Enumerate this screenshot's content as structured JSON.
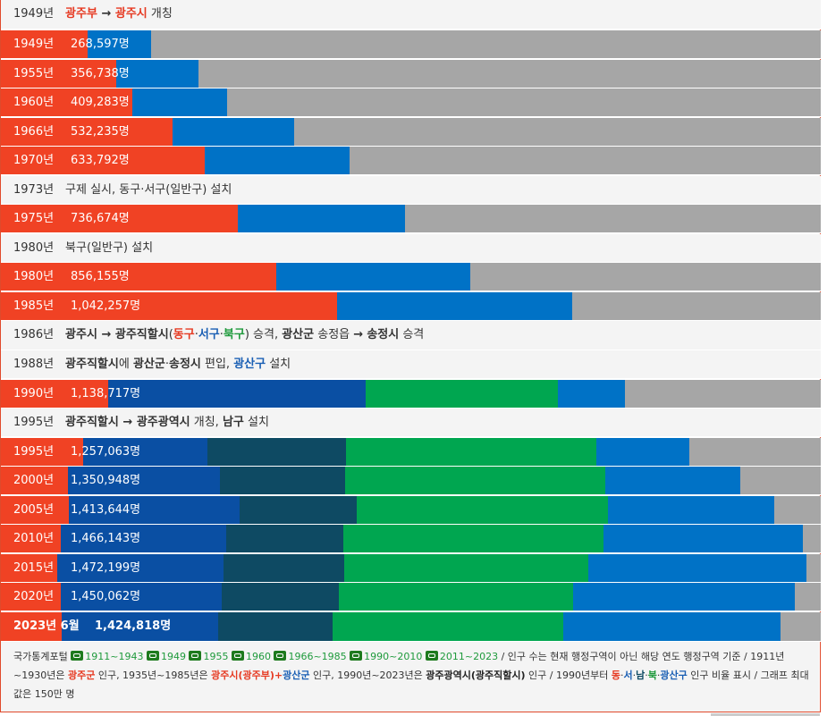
{
  "colors": {
    "bg": "#a6a6a6",
    "total_bar": "#f04224",
    "district_gwangsan": "#0072c6",
    "district_buk": "#0a4fa3",
    "district_nam": "#0e4a63",
    "district_dong": "#00a650",
    "district_seo_2": "#0a4fa3",
    "event_bg": "#f4f4f4"
  },
  "chart_data": {
    "type": "bar",
    "orientation": "horizontal",
    "max_value": 1500000,
    "series_note": "Each row shows total population as a red bar overlaid on stacked district segments",
    "rows": [
      {
        "kind": "event",
        "year": "1949년",
        "text_parts": [
          {
            "t": "광주부",
            "c": "red"
          },
          {
            "t": " → ",
            "c": "bold"
          },
          {
            "t": "광주시",
            "c": "red"
          },
          {
            "t": " 개칭",
            "c": ""
          }
        ]
      },
      {
        "kind": "bar",
        "year": "1949년",
        "label": "268,597명",
        "value": 268597,
        "segments": [
          {
            "color": "#0072c6",
            "value": 0
          }
        ]
      },
      {
        "kind": "bar",
        "year": "1955년",
        "label": "356,738명",
        "value": 356738,
        "segments": []
      },
      {
        "kind": "bar",
        "year": "1960년",
        "label": "409,283명",
        "value": 409283,
        "segments": []
      },
      {
        "kind": "bar",
        "year": "1966년",
        "label": "532,235명",
        "value": 532235,
        "segments": []
      },
      {
        "kind": "bar",
        "year": "1970년",
        "label": "633,792명",
        "value": 633792,
        "segments": []
      },
      {
        "kind": "event",
        "year": "1973년",
        "text_parts": [
          {
            "t": "구제 실시, 동구·서구(일반구) 설치",
            "c": ""
          }
        ]
      },
      {
        "kind": "bar",
        "year": "1975년",
        "label": "736,674명",
        "value": 736674,
        "segments": []
      },
      {
        "kind": "event",
        "year": "1980년",
        "text_parts": [
          {
            "t": "북구(일반구) 설치",
            "c": ""
          }
        ]
      },
      {
        "kind": "bar",
        "year": "1980년",
        "label": "856,155명",
        "value": 856155,
        "segments": []
      },
      {
        "kind": "bar",
        "year": "1985년",
        "label": "1,042,257명",
        "value": 1042257,
        "segments": []
      },
      {
        "kind": "event",
        "year": "1986년",
        "text_parts": [
          {
            "t": "광주시",
            "c": "bold"
          },
          {
            "t": " → ",
            "c": "bold"
          },
          {
            "t": "광주직할시",
            "c": "bold"
          },
          {
            "t": "(",
            "c": ""
          },
          {
            "t": "동구",
            "c": "red"
          },
          {
            "t": "·",
            "c": ""
          },
          {
            "t": "서구",
            "c": "blu"
          },
          {
            "t": "·",
            "c": ""
          },
          {
            "t": "북구",
            "c": "grn"
          },
          {
            "t": ") 승격, ",
            "c": ""
          },
          {
            "t": "광산군",
            "c": "bold"
          },
          {
            "t": " 송정읍 ",
            "c": ""
          },
          {
            "t": "→",
            "c": "bold"
          },
          {
            "t": " ",
            "c": ""
          },
          {
            "t": "송정시",
            "c": "bold"
          },
          {
            "t": " 승격",
            "c": ""
          }
        ]
      },
      {
        "kind": "event",
        "year": "1988년",
        "text_parts": [
          {
            "t": "광주직할시",
            "c": "bold"
          },
          {
            "t": "에 ",
            "c": ""
          },
          {
            "t": "광산군",
            "c": "bold"
          },
          {
            "t": "·",
            "c": ""
          },
          {
            "t": "송정시",
            "c": "bold"
          },
          {
            "t": " 편입, ",
            "c": ""
          },
          {
            "t": "광산구",
            "c": "blu"
          },
          {
            "t": " 설치",
            "c": ""
          }
        ]
      },
      {
        "kind": "bar",
        "year": "1990년",
        "label": "1,138,717명",
        "value": 1138717,
        "segments": []
      },
      {
        "kind": "event",
        "year": "1995년",
        "text_parts": [
          {
            "t": "광주직할시",
            "c": "bold"
          },
          {
            "t": " → ",
            "c": "bold"
          },
          {
            "t": "광주광역시",
            "c": "bold"
          },
          {
            "t": " 개칭, ",
            "c": ""
          },
          {
            "t": "남구",
            "c": "bold"
          },
          {
            "t": " 설치",
            "c": ""
          }
        ]
      },
      {
        "kind": "bar",
        "year": "1995년",
        "label": "1,257,063명",
        "value": 1257063,
        "segments": []
      },
      {
        "kind": "bar",
        "year": "2000년",
        "label": "1,350,948명",
        "value": 1350948,
        "segments": []
      },
      {
        "kind": "bar",
        "year": "2005년",
        "label": "1,413,644명",
        "value": 1413644,
        "segments": []
      },
      {
        "kind": "bar",
        "year": "2010년",
        "label": "1,466,143명",
        "value": 1466143,
        "segments": []
      },
      {
        "kind": "bar",
        "year": "2015년",
        "label": "1,472,199명",
        "value": 1472199,
        "segments": []
      },
      {
        "kind": "bar",
        "year": "2020년",
        "label": "1,450,062명",
        "value": 1450062,
        "segments": []
      },
      {
        "kind": "bar",
        "year": "2023년 6월",
        "label": "1,424,818명",
        "value": 1424818,
        "segments": [],
        "bold": true
      }
    ]
  },
  "note": {
    "source_label": "국가통계포털",
    "links": [
      "1911~1943",
      "1949",
      "1955",
      "1960",
      "1966~1985",
      "1990~2010",
      "2011~2023"
    ],
    "text_a": " / 인구 수는 현재 행정구역이 아닌 해당 연도 행정구역 기준 / 1911년~1930년은 ",
    "gun": "광주군",
    "text_b": " 인구, 1935년~1985년은 ",
    "si": "광주시(광주부)",
    "plus": "+",
    "gsgun": "광산군",
    "text_c": " 인구, 1990년~2023년은 ",
    "metro": "광주광역시(광주직할시)",
    "text_d": " 인구 / 1990년부터 ",
    "d_dong": "동",
    "d_seo": "서",
    "d_nam": "남",
    "d_buk": "북",
    "d_gwangsan": "광산구",
    "text_e": " 인구 비율 표시 / 그래프 최대 값은 150만 명",
    "dot": "·"
  }
}
